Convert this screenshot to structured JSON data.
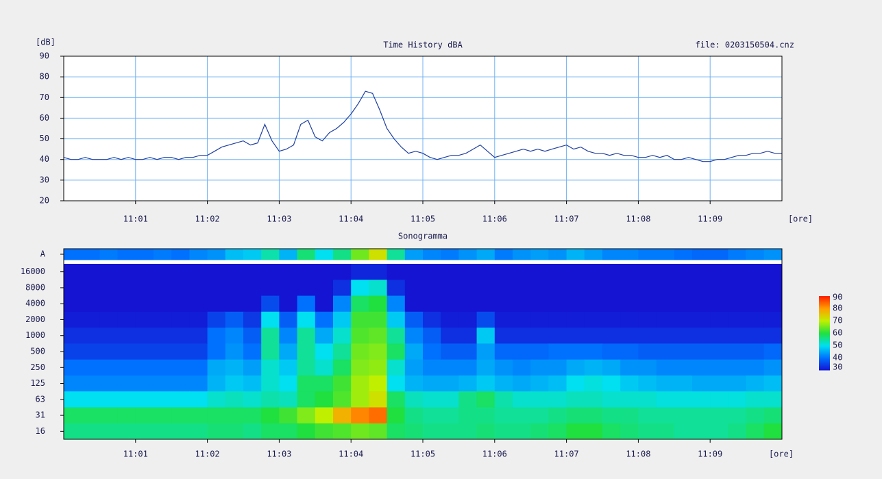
{
  "chart_data": [
    {
      "type": "line",
      "title": "Time History dBA",
      "y_label": "[dB]",
      "x_label": "[ore]",
      "annotation": "file: 0203150504.cnz",
      "x": [
        0,
        0.1,
        0.2,
        0.3,
        0.4,
        0.5,
        0.6,
        0.7,
        0.8,
        0.9,
        1,
        1.1,
        1.2,
        1.3,
        1.4,
        1.5,
        1.6,
        1.7,
        1.8,
        1.9,
        2,
        2.1,
        2.2,
        2.3,
        2.4,
        2.5,
        2.6,
        2.7,
        2.8,
        2.9,
        3,
        3.1,
        3.2,
        3.3,
        3.4,
        3.5,
        3.6,
        3.7,
        3.8,
        3.9,
        4,
        4.1,
        4.2,
        4.3,
        4.4,
        4.5,
        4.6,
        4.7,
        4.8,
        4.9,
        5,
        5.1,
        5.2,
        5.3,
        5.4,
        5.5,
        5.6,
        5.7,
        5.8,
        5.9,
        6,
        6.1,
        6.2,
        6.3,
        6.4,
        6.5,
        6.6,
        6.7,
        6.8,
        6.9,
        7,
        7.1,
        7.2,
        7.3,
        7.4,
        7.5,
        7.6,
        7.7,
        7.8,
        7.9,
        8,
        8.1,
        8.2,
        8.3,
        8.4,
        8.5,
        8.6,
        8.7,
        8.8,
        8.9,
        9,
        9.1,
        9.2,
        9.3,
        9.4,
        9.5,
        9.6,
        9.7,
        9.8,
        9.9,
        10
      ],
      "series": [
        {
          "name": "dBA",
          "color": "#1f3f9f",
          "values": [
            41,
            40,
            40,
            41,
            40,
            40,
            40,
            41,
            40,
            41,
            40,
            40,
            41,
            40,
            41,
            41,
            40,
            41,
            41,
            42,
            42,
            44,
            46,
            47,
            48,
            49,
            47,
            48,
            57,
            49,
            44,
            45,
            47,
            57,
            59,
            51,
            49,
            53,
            55,
            58,
            62,
            67,
            73,
            72,
            64,
            55,
            50,
            46,
            43,
            44,
            43,
            41,
            40,
            41,
            42,
            42,
            43,
            45,
            47,
            44,
            41,
            42,
            43,
            44,
            45,
            44,
            45,
            44,
            45,
            46,
            47,
            45,
            46,
            44,
            43,
            43,
            42,
            43,
            42,
            42,
            41,
            41,
            42,
            41,
            42,
            40,
            40,
            41,
            40,
            39,
            39,
            40,
            40,
            41,
            42,
            42,
            43,
            43,
            44,
            43,
            43
          ]
        }
      ],
      "xlim": [
        0,
        10
      ],
      "xticks": [
        {
          "value": 1,
          "label": "11:01"
        },
        {
          "value": 2,
          "label": "11:02"
        },
        {
          "value": 3,
          "label": "11:03"
        },
        {
          "value": 4,
          "label": "11:04"
        },
        {
          "value": 5,
          "label": "11:05"
        },
        {
          "value": 6,
          "label": "11:06"
        },
        {
          "value": 7,
          "label": "11:07"
        },
        {
          "value": 8,
          "label": "11:08"
        },
        {
          "value": 9,
          "label": "11:09"
        }
      ],
      "ylim": [
        20,
        90
      ],
      "yticks": [
        20,
        30,
        40,
        50,
        60,
        70,
        80,
        90
      ],
      "grid": true,
      "grid_color": "#6fb0f0"
    },
    {
      "type": "heatmap",
      "title": "Sonogramma",
      "x_label": "[ore]",
      "rows": [
        "A",
        "16000",
        "8000",
        "4000",
        "2000",
        "1000",
        "500",
        "250",
        "125",
        "63",
        "31",
        "16"
      ],
      "x_bins": [
        0,
        0.25,
        0.5,
        0.75,
        1,
        1.25,
        1.5,
        1.75,
        2,
        2.25,
        2.5,
        2.75,
        3,
        3.25,
        3.5,
        3.75,
        4,
        4.25,
        4.5,
        4.75,
        5,
        5.25,
        5.5,
        5.75,
        6,
        6.25,
        6.5,
        6.75,
        7,
        7.25,
        7.5,
        7.75,
        8,
        8.25,
        8.5,
        8.75,
        9,
        9.25,
        9.5,
        9.75,
        10
      ],
      "values": [
        [
          40,
          40,
          41,
          40,
          40,
          41,
          40,
          42,
          43,
          47,
          48,
          54,
          46,
          57,
          50,
          56,
          65,
          72,
          55,
          44,
          42,
          41,
          43,
          45,
          41,
          43,
          44,
          43,
          46,
          44,
          42,
          42,
          41,
          41,
          40,
          39,
          39,
          41,
          42,
          43
        ],
        [
          30,
          30,
          30,
          30,
          30,
          30,
          30,
          30,
          30,
          30,
          30,
          30,
          30,
          30,
          30,
          30,
          32,
          32,
          30,
          30,
          30,
          30,
          30,
          30,
          30,
          30,
          30,
          30,
          30,
          30,
          30,
          30,
          30,
          30,
          30,
          30,
          30,
          30,
          30,
          30
        ],
        [
          30,
          30,
          30,
          30,
          30,
          30,
          30,
          30,
          30,
          30,
          30,
          30,
          30,
          30,
          30,
          33,
          50,
          52,
          33,
          30,
          30,
          30,
          30,
          30,
          30,
          30,
          30,
          30,
          30,
          30,
          30,
          30,
          30,
          30,
          30,
          30,
          30,
          30,
          30,
          30
        ],
        [
          30,
          30,
          30,
          30,
          30,
          30,
          30,
          30,
          30,
          30,
          30,
          36,
          30,
          40,
          30,
          42,
          58,
          60,
          42,
          30,
          30,
          30,
          30,
          30,
          30,
          30,
          30,
          30,
          30,
          30,
          30,
          30,
          30,
          30,
          30,
          30,
          30,
          30,
          30,
          30
        ],
        [
          31,
          31,
          31,
          31,
          31,
          31,
          31,
          31,
          35,
          38,
          34,
          50,
          38,
          50,
          40,
          48,
          62,
          62,
          48,
          38,
          33,
          31,
          31,
          36,
          31,
          31,
          31,
          31,
          31,
          31,
          31,
          31,
          31,
          31,
          31,
          31,
          31,
          31,
          31,
          31
        ],
        [
          33,
          33,
          33,
          33,
          33,
          33,
          33,
          33,
          40,
          42,
          38,
          55,
          42,
          55,
          45,
          52,
          63,
          64,
          55,
          42,
          38,
          33,
          33,
          48,
          33,
          33,
          33,
          33,
          33,
          33,
          33,
          33,
          33,
          33,
          33,
          33,
          33,
          33,
          33,
          33
        ],
        [
          35,
          35,
          35,
          35,
          35,
          35,
          35,
          35,
          40,
          43,
          40,
          55,
          45,
          55,
          50,
          55,
          65,
          66,
          58,
          45,
          40,
          38,
          38,
          44,
          39,
          39,
          39,
          40,
          40,
          40,
          39,
          39,
          38,
          38,
          38,
          38,
          38,
          38,
          38,
          39
        ],
        [
          40,
          40,
          40,
          40,
          40,
          40,
          40,
          40,
          45,
          46,
          44,
          52,
          48,
          55,
          52,
          58,
          66,
          67,
          52,
          44,
          42,
          42,
          42,
          45,
          43,
          42,
          43,
          43,
          45,
          46,
          45,
          43,
          43,
          42,
          42,
          42,
          42,
          42,
          42,
          43
        ],
        [
          42,
          42,
          42,
          42,
          42,
          42,
          42,
          42,
          46,
          48,
          47,
          52,
          50,
          58,
          58,
          62,
          68,
          70,
          50,
          46,
          45,
          45,
          46,
          48,
          46,
          45,
          46,
          47,
          50,
          51,
          50,
          48,
          47,
          46,
          46,
          45,
          45,
          45,
          46,
          47
        ],
        [
          50,
          50,
          50,
          50,
          50,
          50,
          50,
          50,
          52,
          53,
          52,
          54,
          53,
          58,
          60,
          63,
          68,
          72,
          58,
          53,
          52,
          52,
          56,
          58,
          54,
          52,
          52,
          52,
          53,
          53,
          52,
          52,
          52,
          51,
          51,
          51,
          51,
          51,
          52,
          52
        ],
        [
          58,
          58,
          58,
          58,
          58,
          58,
          58,
          58,
          58,
          58,
          58,
          60,
          62,
          66,
          70,
          78,
          82,
          84,
          60,
          56,
          55,
          55,
          56,
          56,
          55,
          55,
          55,
          56,
          57,
          57,
          56,
          56,
          55,
          55,
          55,
          55,
          55,
          55,
          56,
          57
        ],
        [
          56,
          56,
          56,
          56,
          56,
          56,
          56,
          56,
          57,
          57,
          56,
          58,
          58,
          60,
          62,
          63,
          65,
          64,
          58,
          57,
          56,
          56,
          56,
          57,
          56,
          56,
          57,
          58,
          60,
          60,
          58,
          57,
          56,
          56,
          55,
          55,
          55,
          56,
          58,
          60
        ]
      ],
      "xlim": [
        0,
        10
      ],
      "xticks": [
        {
          "value": 1,
          "label": "11:01"
        },
        {
          "value": 2,
          "label": "11:02"
        },
        {
          "value": 3,
          "label": "11:03"
        },
        {
          "value": 4,
          "label": "11:04"
        },
        {
          "value": 5,
          "label": "11:05"
        },
        {
          "value": 6,
          "label": "11:06"
        },
        {
          "value": 7,
          "label": "11:07"
        },
        {
          "value": 8,
          "label": "11:08"
        },
        {
          "value": 9,
          "label": "11:09"
        }
      ],
      "clim": [
        30,
        90
      ],
      "colorbar_ticks": [
        90,
        80,
        70,
        60,
        50,
        40,
        30
      ],
      "colormap": [
        "#1414d2",
        "#0070ff",
        "#00e0f0",
        "#20e040",
        "#c0f000",
        "#ffa000",
        "#ff2000"
      ]
    }
  ]
}
